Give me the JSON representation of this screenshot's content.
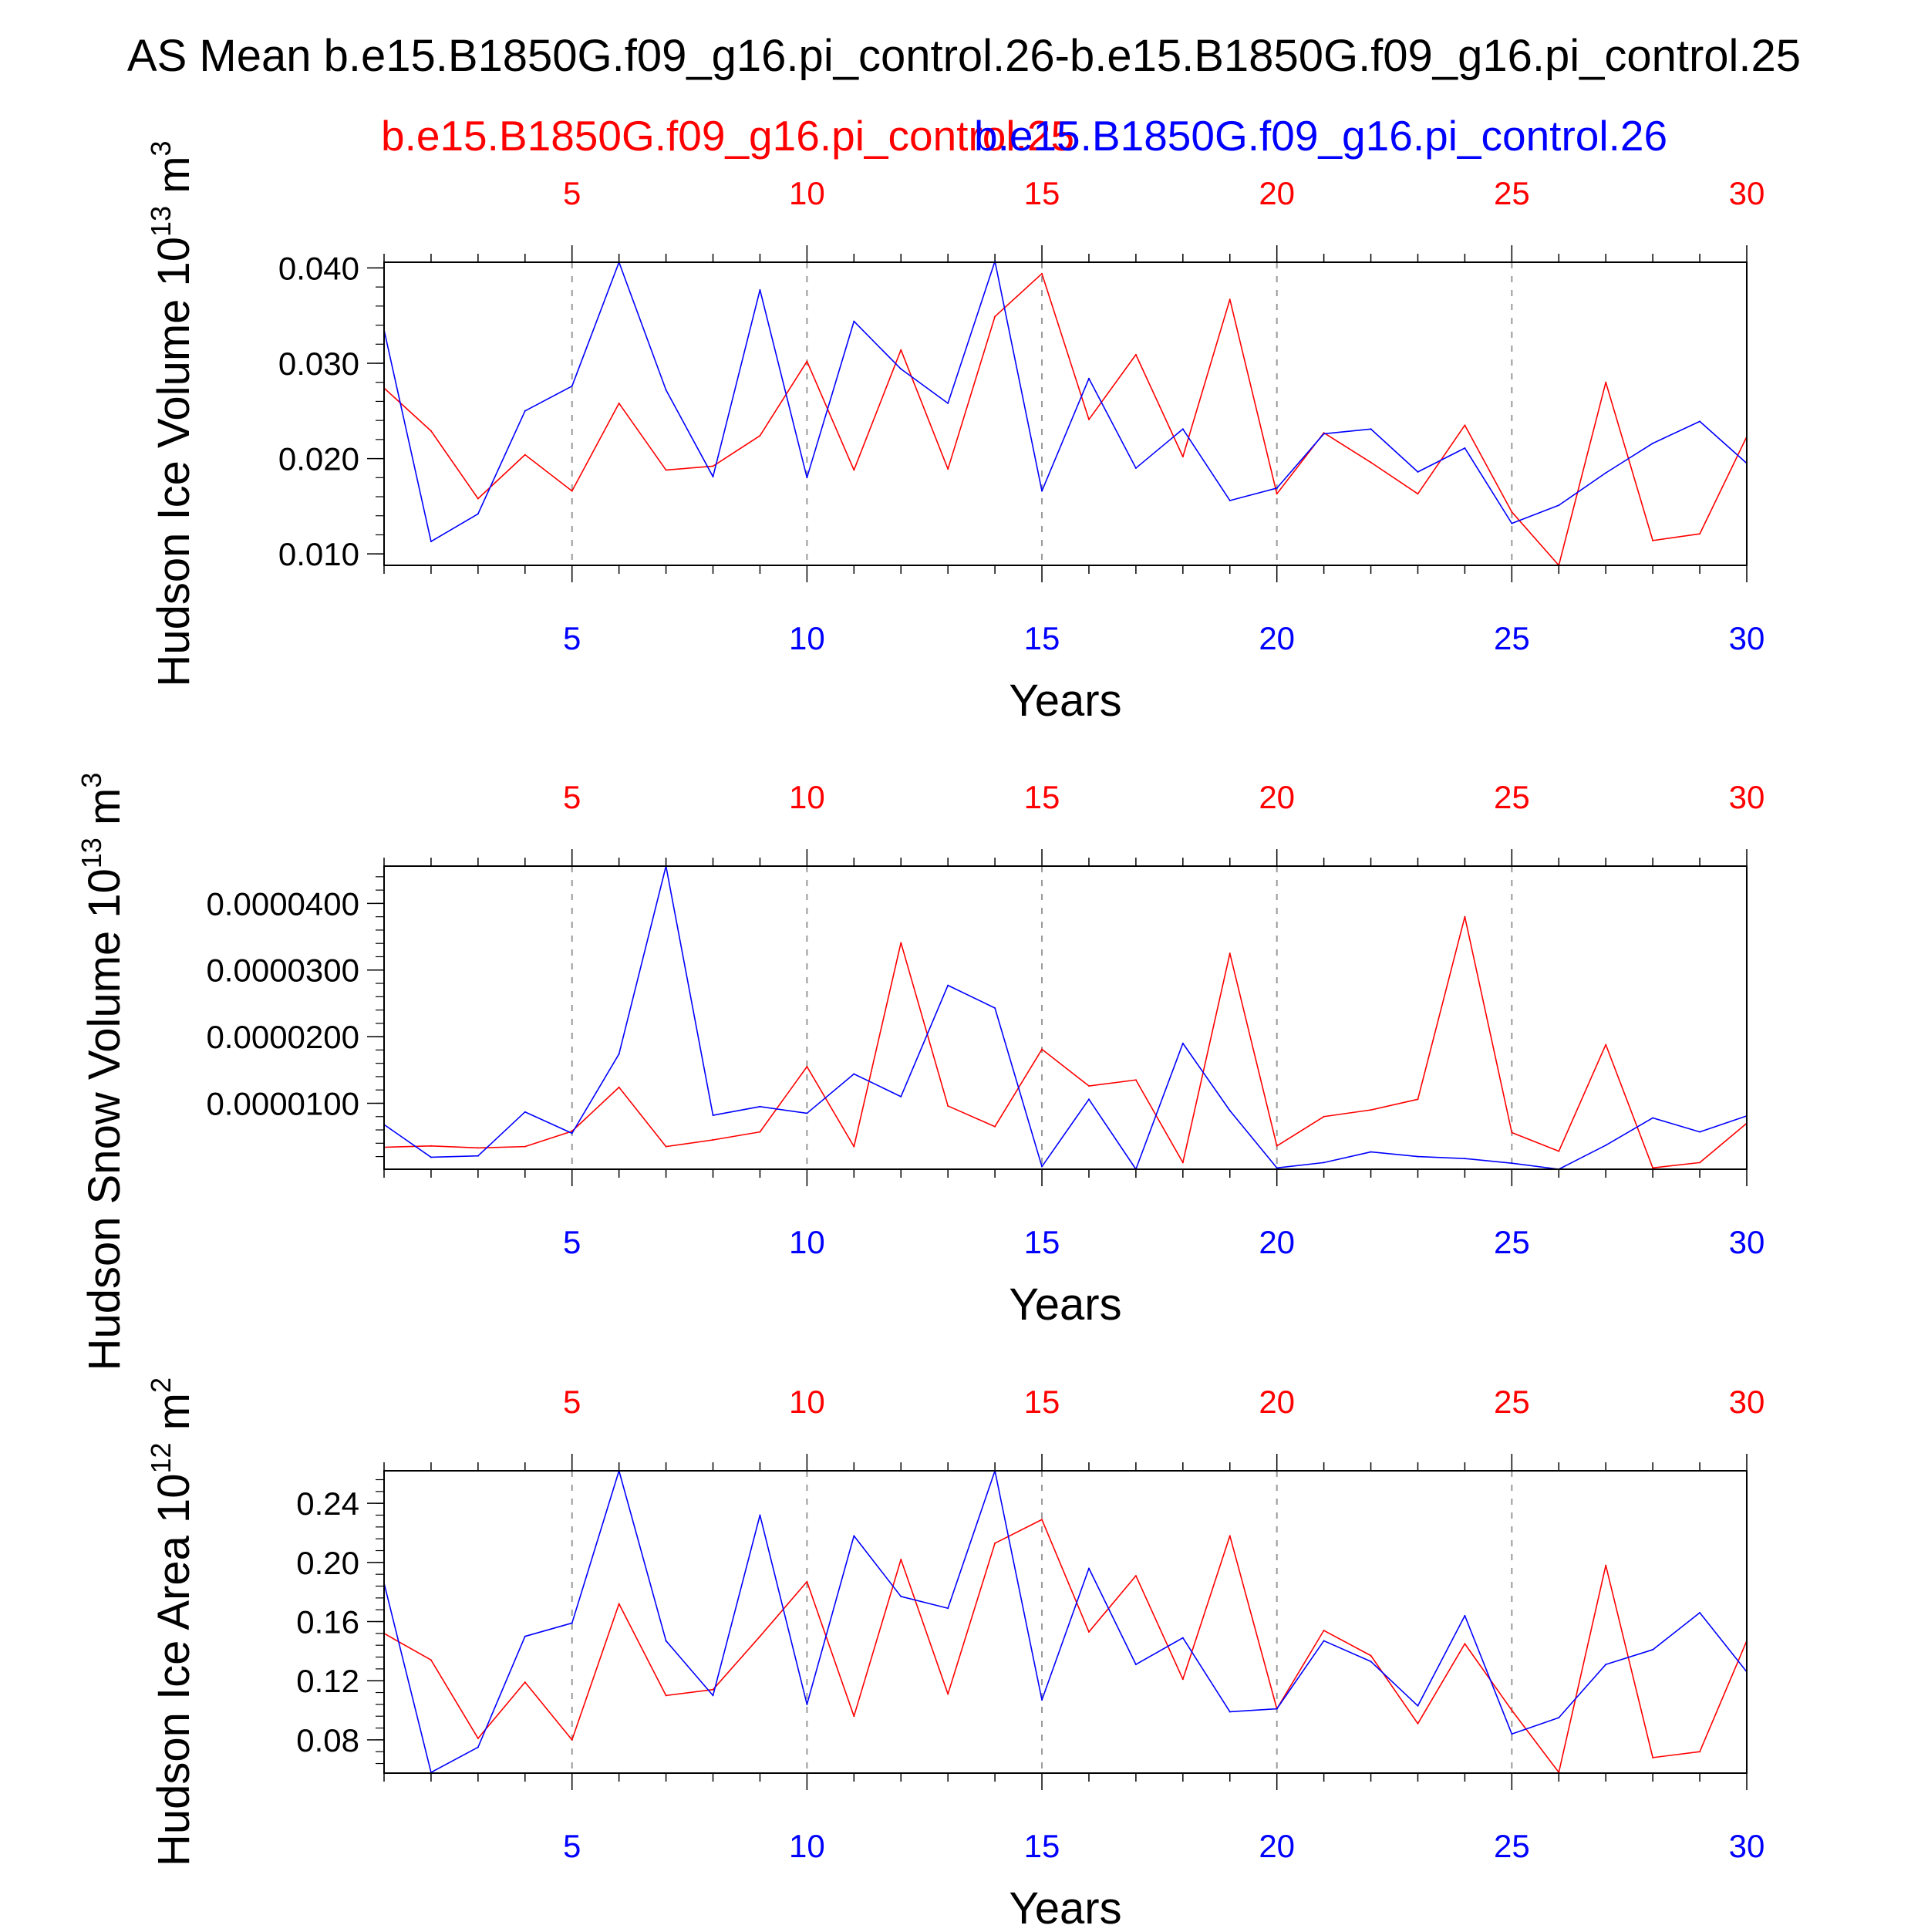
{
  "title": "AS Mean b.e15.B1850G.f09_g16.pi_control.26-b.e15.B1850G.f09_g16.pi_control.25",
  "legend": {
    "red_name": "b.e15.B1850G.f09_g16.pi_control.25",
    "blue_name": "b.e15.B1850G.f09_g16.pi_control.26"
  },
  "colors": {
    "red": "#ff0000",
    "blue": "#0000ff",
    "axis": "#000000",
    "grid": "#999999"
  },
  "chart_data": [
    {
      "type": "line",
      "title": "",
      "ylabel": "Hudson Ice Volume 10",
      "ylabel_exp": "13",
      "ylabel_unit": " m",
      "ylabel_unit_exp": "3",
      "xlabel": "Years",
      "xlim": [
        1,
        30
      ],
      "ylim": [
        0.0088,
        0.0406
      ],
      "xticks": [
        5,
        10,
        15,
        20,
        25,
        30
      ],
      "xtick_labels": [
        "5",
        "10",
        "15",
        "20",
        "25",
        "30"
      ],
      "yticks": [
        0.01,
        0.02,
        0.03,
        0.04
      ],
      "ytick_labels": [
        "0.010",
        "0.020",
        "0.030",
        "0.040"
      ],
      "y_minor_step": 0.002,
      "x": [
        1,
        2,
        3,
        4,
        5,
        6,
        7,
        8,
        9,
        10,
        11,
        12,
        13,
        14,
        15,
        16,
        17,
        18,
        19,
        20,
        21,
        22,
        23,
        24,
        25,
        26,
        27,
        28,
        29,
        30
      ],
      "series": [
        {
          "name": "b.e15.B1850G.f09_g16.pi_control.25",
          "color": "red",
          "values": [
            0.0274,
            0.0229,
            0.0158,
            0.0204,
            0.0166,
            0.0258,
            0.0188,
            0.0192,
            0.0224,
            0.0302,
            0.0188,
            0.0314,
            0.0189,
            0.0349,
            0.0394,
            0.0241,
            0.0309,
            0.0202,
            0.0367,
            0.0163,
            0.0227,
            0.0196,
            0.0163,
            0.0235,
            0.0144,
            0.0088,
            0.028,
            0.0114,
            0.0121,
            0.0223
          ]
        },
        {
          "name": "b.e15.B1850G.f09_g16.pi_control.26",
          "color": "blue",
          "values": [
            0.0335,
            0.0113,
            0.0142,
            0.025,
            0.0276,
            0.0406,
            0.0272,
            0.0181,
            0.0377,
            0.018,
            0.0344,
            0.0294,
            0.0258,
            0.0407,
            0.0166,
            0.0284,
            0.019,
            0.0231,
            0.0156,
            0.0169,
            0.0226,
            0.0231,
            0.0186,
            0.0211,
            0.0132,
            0.0151,
            0.0185,
            0.0216,
            0.0239,
            0.0195
          ]
        }
      ]
    },
    {
      "type": "line",
      "title": "",
      "ylabel": "Hudson Snow Volume 10",
      "ylabel_exp": "13",
      "ylabel_unit": " m",
      "ylabel_unit_exp": "3",
      "xlabel": "Years",
      "xlim": [
        1,
        30
      ],
      "ylim": [
        1e-07,
        4.56e-05
      ],
      "xticks": [
        5,
        10,
        15,
        20,
        25,
        30
      ],
      "xtick_labels": [
        "5",
        "10",
        "15",
        "20",
        "25",
        "30"
      ],
      "yticks": [
        1e-05,
        2e-05,
        3e-05,
        4e-05
      ],
      "ytick_labels": [
        "0.0000100",
        "0.0000200",
        "0.0000300",
        "0.0000400"
      ],
      "y_minor_step": 2e-06,
      "x": [
        1,
        2,
        3,
        4,
        5,
        6,
        7,
        8,
        9,
        10,
        11,
        12,
        13,
        14,
        15,
        16,
        17,
        18,
        19,
        20,
        21,
        22,
        23,
        24,
        25,
        26,
        27,
        28,
        29,
        30
      ],
      "series": [
        {
          "name": "b.e15.B1850G.f09_g16.pi_control.25",
          "color": "red",
          "values": [
            3.4e-06,
            3.6e-06,
            3.3e-06,
            3.5e-06,
            5.8e-06,
            1.24e-05,
            3.5e-06,
            4.5e-06,
            5.7e-06,
            1.55e-05,
            3.5e-06,
            3.41e-05,
            9.6e-06,
            6.5e-06,
            1.81e-05,
            1.26e-05,
            1.35e-05,
            1.1e-06,
            3.25e-05,
            3.6e-06,
            8e-06,
            9e-06,
            1.06e-05,
            3.8e-05,
            5.6e-06,
            2.8e-06,
            1.88e-05,
            3e-07,
            1.1e-06,
            7e-06
          ]
        },
        {
          "name": "b.e15.B1850G.f09_g16.pi_control.26",
          "color": "blue",
          "values": [
            6.8e-06,
            1.9e-06,
            2.1e-06,
            8.7e-06,
            5.5e-06,
            1.74e-05,
            4.56e-05,
            8.2e-06,
            9.5e-06,
            8.5e-06,
            1.44e-05,
            1.1e-05,
            2.77e-05,
            2.43e-05,
            5e-07,
            1.06e-05,
            1e-07,
            1.9e-05,
            8.9e-06,
            3e-07,
            1.1e-06,
            2.7e-06,
            2e-06,
            1.7e-06,
            1e-06,
            1e-07,
            3.7e-06,
            7.8e-06,
            5.7e-06,
            8.1e-06
          ]
        }
      ]
    },
    {
      "type": "line",
      "title": "",
      "ylabel": "Hudson Ice Area 10",
      "ylabel_exp": "12",
      "ylabel_unit": " m",
      "ylabel_unit_exp": "2",
      "xlabel": "Years",
      "xlim": [
        1,
        30
      ],
      "ylim": [
        0.0575,
        0.262
      ],
      "xticks": [
        5,
        10,
        15,
        20,
        25,
        30
      ],
      "xtick_labels": [
        "5",
        "10",
        "15",
        "20",
        "25",
        "30"
      ],
      "yticks": [
        0.08,
        0.12,
        0.16,
        0.2,
        0.24
      ],
      "ytick_labels": [
        "0.08",
        "0.12",
        "0.16",
        "0.20",
        "0.24"
      ],
      "y_minor_step": 0.008,
      "x": [
        1,
        2,
        3,
        4,
        5,
        6,
        7,
        8,
        9,
        10,
        11,
        12,
        13,
        14,
        15,
        16,
        17,
        18,
        19,
        20,
        21,
        22,
        23,
        24,
        25,
        26,
        27,
        28,
        29,
        30
      ],
      "series": [
        {
          "name": "b.e15.B1850G.f09_g16.pi_control.25",
          "color": "red",
          "values": [
            0.152,
            0.134,
            0.081,
            0.119,
            0.08,
            0.172,
            0.11,
            0.114,
            0.15,
            0.187,
            0.096,
            0.202,
            0.111,
            0.213,
            0.229,
            0.153,
            0.191,
            0.121,
            0.218,
            0.101,
            0.154,
            0.137,
            0.091,
            0.145,
            0.1,
            0.058,
            0.198,
            0.068,
            0.072,
            0.147
          ]
        },
        {
          "name": "b.e15.B1850G.f09_g16.pi_control.26",
          "color": "blue",
          "values": [
            0.186,
            0.058,
            0.075,
            0.15,
            0.159,
            0.262,
            0.147,
            0.11,
            0.232,
            0.104,
            0.218,
            0.177,
            0.169,
            0.262,
            0.107,
            0.196,
            0.131,
            0.149,
            0.099,
            0.101,
            0.147,
            0.133,
            0.103,
            0.164,
            0.084,
            0.095,
            0.131,
            0.141,
            0.166,
            0.126
          ]
        }
      ]
    }
  ]
}
